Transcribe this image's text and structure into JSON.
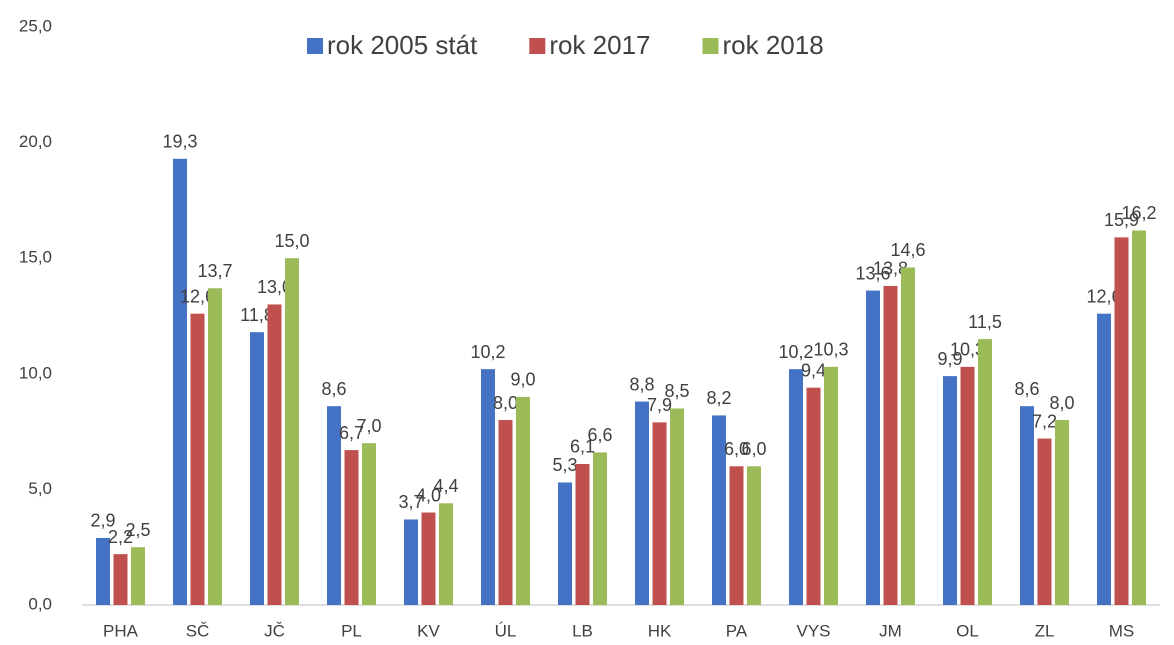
{
  "chart_data": {
    "type": "bar",
    "categories": [
      "PHA",
      "SČ",
      "JČ",
      "PL",
      "KV",
      "ÚL",
      "LB",
      "HK",
      "PA",
      "VYS",
      "JM",
      "OL",
      "ZL",
      "MS"
    ],
    "series": [
      {
        "name": "rok 2005 stát",
        "color": "#4472c4",
        "values": [
          2.9,
          19.3,
          11.8,
          8.6,
          3.7,
          10.2,
          5.3,
          8.8,
          8.2,
          10.2,
          13.6,
          9.9,
          8.6,
          12.6
        ],
        "value_labels": [
          "2,9",
          "19,3",
          "11,8",
          "8,6",
          "3,7",
          "10,2",
          "5,3",
          "8,8",
          "8,2",
          "10,2",
          "13,6",
          "9,9",
          "8,6",
          "12,6"
        ]
      },
      {
        "name": "rok 2017",
        "color": "#c0504d",
        "values": [
          2.2,
          12.6,
          13.0,
          6.7,
          4.0,
          8.0,
          6.1,
          7.9,
          6.0,
          9.4,
          13.8,
          10.3,
          7.2,
          15.9
        ],
        "value_labels": [
          "2,2",
          "12,6",
          "13,0",
          "6,7",
          "4,0",
          "8,0",
          "6,1",
          "7,9",
          "6,0",
          "9,4",
          "13,8",
          "10,3",
          "7,2",
          "15,9"
        ]
      },
      {
        "name": "rok 2018",
        "color": "#9bbb59",
        "values": [
          2.5,
          13.7,
          15.0,
          7.0,
          4.4,
          9.0,
          6.6,
          8.5,
          6.0,
          10.3,
          14.6,
          11.5,
          8.0,
          16.2
        ],
        "value_labels": [
          "2,5",
          "13,7",
          "15,0",
          "7,0",
          "4,4",
          "9,0",
          "6,6",
          "8,5",
          "6,0",
          "10,3",
          "14,6",
          "11,5",
          "8,0",
          "16,2"
        ]
      }
    ],
    "ylim": [
      0,
      25
    ],
    "yticks": [
      {
        "value": 0,
        "label": "0,0"
      },
      {
        "value": 5,
        "label": "5,0"
      },
      {
        "value": 10,
        "label": "10,0"
      },
      {
        "value": 15,
        "label": "15,0"
      },
      {
        "value": 20,
        "label": "20,0"
      },
      {
        "value": 25,
        "label": "25,0"
      }
    ],
    "legend": "top",
    "grid": false
  }
}
